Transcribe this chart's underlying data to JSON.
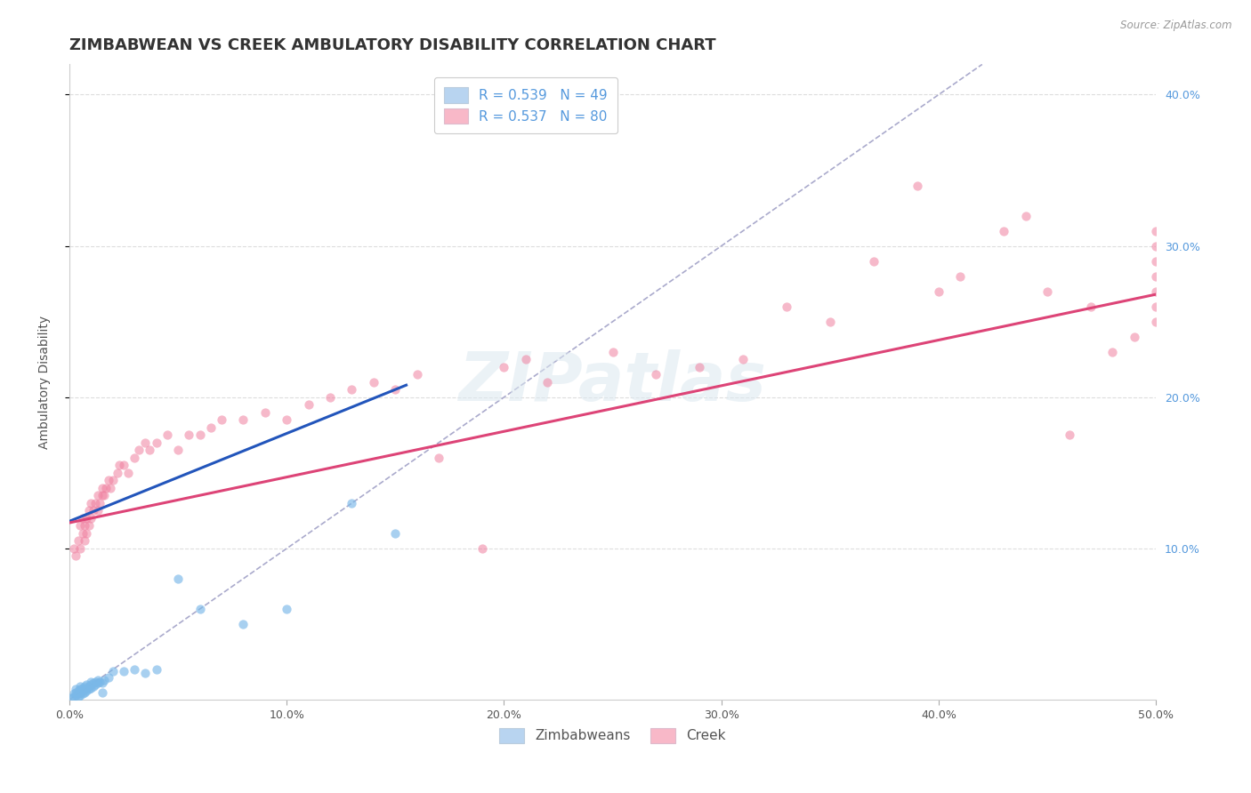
{
  "title": "ZIMBABWEAN VS CREEK AMBULATORY DISABILITY CORRELATION CHART",
  "source": "Source: ZipAtlas.com",
  "ylabel": "Ambulatory Disability",
  "xlim": [
    0.0,
    0.5
  ],
  "ylim": [
    0.0,
    0.42
  ],
  "xticks": [
    0.0,
    0.1,
    0.2,
    0.3,
    0.4,
    0.5
  ],
  "yticks": [
    0.1,
    0.2,
    0.3,
    0.4
  ],
  "xtick_labels": [
    "0.0%",
    "10.0%",
    "20.0%",
    "30.0%",
    "40.0%",
    "50.0%"
  ],
  "ytick_labels_right": [
    "10.0%",
    "20.0%",
    "30.0%",
    "40.0%"
  ],
  "legend_label1": "R = 0.539   N = 49",
  "legend_label2": "R = 0.537   N = 80",
  "legend_color1": "#b8d4f0",
  "legend_color2": "#f8b8c8",
  "zimbabwean_color": "#7ab8e8",
  "zimbabwean_alpha": 0.65,
  "zimbabwean_size": 55,
  "zimbabwean_x": [
    0.001,
    0.002,
    0.002,
    0.003,
    0.003,
    0.003,
    0.004,
    0.004,
    0.004,
    0.005,
    0.005,
    0.005,
    0.005,
    0.006,
    0.006,
    0.006,
    0.007,
    0.007,
    0.007,
    0.008,
    0.008,
    0.008,
    0.009,
    0.009,
    0.01,
    0.01,
    0.01,
    0.011,
    0.011,
    0.012,
    0.012,
    0.013,
    0.013,
    0.014,
    0.015,
    0.015,
    0.016,
    0.018,
    0.02,
    0.025,
    0.03,
    0.035,
    0.04,
    0.05,
    0.06,
    0.08,
    0.1,
    0.13,
    0.15
  ],
  "zimbabwean_y": [
    0.001,
    0.002,
    0.004,
    0.003,
    0.005,
    0.007,
    0.002,
    0.004,
    0.006,
    0.003,
    0.005,
    0.007,
    0.009,
    0.004,
    0.006,
    0.008,
    0.005,
    0.007,
    0.009,
    0.006,
    0.008,
    0.01,
    0.007,
    0.009,
    0.008,
    0.01,
    0.012,
    0.009,
    0.011,
    0.01,
    0.012,
    0.011,
    0.013,
    0.012,
    0.005,
    0.011,
    0.013,
    0.015,
    0.019,
    0.019,
    0.02,
    0.018,
    0.02,
    0.08,
    0.06,
    0.05,
    0.06,
    0.13,
    0.11
  ],
  "creek_color": "#f080a0",
  "creek_alpha": 0.55,
  "creek_size": 55,
  "creek_x": [
    0.002,
    0.003,
    0.004,
    0.005,
    0.005,
    0.006,
    0.006,
    0.007,
    0.007,
    0.008,
    0.008,
    0.009,
    0.009,
    0.01,
    0.01,
    0.011,
    0.012,
    0.013,
    0.013,
    0.014,
    0.015,
    0.015,
    0.016,
    0.017,
    0.018,
    0.019,
    0.02,
    0.022,
    0.023,
    0.025,
    0.027,
    0.03,
    0.032,
    0.035,
    0.037,
    0.04,
    0.045,
    0.05,
    0.055,
    0.06,
    0.065,
    0.07,
    0.08,
    0.09,
    0.1,
    0.11,
    0.12,
    0.13,
    0.14,
    0.15,
    0.16,
    0.17,
    0.19,
    0.2,
    0.21,
    0.22,
    0.25,
    0.27,
    0.29,
    0.31,
    0.33,
    0.35,
    0.37,
    0.39,
    0.4,
    0.41,
    0.43,
    0.44,
    0.45,
    0.46,
    0.47,
    0.48,
    0.49,
    0.5,
    0.5,
    0.5,
    0.5,
    0.5,
    0.5,
    0.5
  ],
  "creek_y": [
    0.1,
    0.095,
    0.105,
    0.1,
    0.115,
    0.11,
    0.12,
    0.105,
    0.115,
    0.11,
    0.12,
    0.115,
    0.125,
    0.12,
    0.13,
    0.125,
    0.13,
    0.125,
    0.135,
    0.13,
    0.135,
    0.14,
    0.135,
    0.14,
    0.145,
    0.14,
    0.145,
    0.15,
    0.155,
    0.155,
    0.15,
    0.16,
    0.165,
    0.17,
    0.165,
    0.17,
    0.175,
    0.165,
    0.175,
    0.175,
    0.18,
    0.185,
    0.185,
    0.19,
    0.185,
    0.195,
    0.2,
    0.205,
    0.21,
    0.205,
    0.215,
    0.16,
    0.1,
    0.22,
    0.225,
    0.21,
    0.23,
    0.215,
    0.22,
    0.225,
    0.26,
    0.25,
    0.29,
    0.34,
    0.27,
    0.28,
    0.31,
    0.32,
    0.27,
    0.175,
    0.26,
    0.23,
    0.24,
    0.25,
    0.26,
    0.27,
    0.28,
    0.29,
    0.3,
    0.31
  ],
  "zim_line_x0": 0.0,
  "zim_line_y0": 0.118,
  "zim_line_x1": 0.155,
  "zim_line_y1": 0.208,
  "creek_line_x0": 0.0,
  "creek_line_y0": 0.117,
  "creek_line_x1": 0.5,
  "creek_line_y1": 0.268,
  "zim_line_color": "#2255bb",
  "creek_line_color": "#dd4477",
  "line_width": 2.2,
  "diag_color": "#aaaacc",
  "diag_lw": 1.2,
  "watermark": "ZIPatlas",
  "watermark_color": "#dce8f0",
  "watermark_alpha": 0.55,
  "watermark_fontsize": 55,
  "background_color": "#ffffff",
  "grid_color": "#dddddd",
  "title_fontsize": 13,
  "label_fontsize": 10,
  "tick_fontsize": 9,
  "legend_fontsize": 11,
  "right_tick_color": "#5599dd",
  "bottom_label_color": "#555555"
}
